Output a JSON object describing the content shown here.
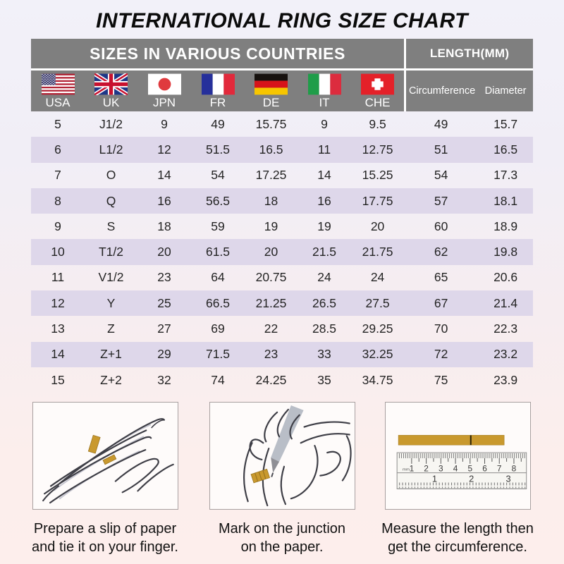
{
  "title": "INTERNATIONAL RING SIZE CHART",
  "table": {
    "header_left": "SIZES IN VARIOUS COUNTRIES",
    "header_right": "LENGTH(MM)",
    "countries": [
      {
        "code": "us",
        "label": "USA",
        "icon": "usa-flag-icon"
      },
      {
        "code": "uk",
        "label": "UK",
        "icon": "uk-flag-icon"
      },
      {
        "code": "jp",
        "label": "JPN",
        "icon": "japan-flag-icon"
      },
      {
        "code": "fr",
        "label": "FR",
        "icon": "france-flag-icon"
      },
      {
        "code": "de",
        "label": "DE",
        "icon": "germany-flag-icon"
      },
      {
        "code": "it",
        "label": "IT",
        "icon": "italy-flag-icon"
      },
      {
        "code": "che",
        "label": "CHE",
        "icon": "switzerland-flag-icon"
      }
    ],
    "length_columns": [
      "Circumference",
      "Diameter"
    ],
    "rows": [
      [
        "5",
        "J1/2",
        "9",
        "49",
        "15.75",
        "9",
        "9.5",
        "49",
        "15.7"
      ],
      [
        "6",
        "L1/2",
        "12",
        "51.5",
        "16.5",
        "11",
        "12.75",
        "51",
        "16.5"
      ],
      [
        "7",
        "O",
        "14",
        "54",
        "17.25",
        "14",
        "15.25",
        "54",
        "17.3"
      ],
      [
        "8",
        "Q",
        "16",
        "56.5",
        "18",
        "16",
        "17.75",
        "57",
        "18.1"
      ],
      [
        "9",
        "S",
        "18",
        "59",
        "19",
        "19",
        "20",
        "60",
        "18.9"
      ],
      [
        "10",
        "T1/2",
        "20",
        "61.5",
        "20",
        "21.5",
        "21.75",
        "62",
        "19.8"
      ],
      [
        "11",
        "V1/2",
        "23",
        "64",
        "20.75",
        "24",
        "24",
        "65",
        "20.6"
      ],
      [
        "12",
        "Y",
        "25",
        "66.5",
        "21.25",
        "26.5",
        "27.5",
        "67",
        "21.4"
      ],
      [
        "13",
        "Z",
        "27",
        "69",
        "22",
        "28.5",
        "29.25",
        "70",
        "22.3"
      ],
      [
        "14",
        "Z+1",
        "29",
        "71.5",
        "23",
        "33",
        "32.25",
        "72",
        "23.2"
      ],
      [
        "15",
        "Z+2",
        "32",
        "74",
        "24.25",
        "35",
        "34.75",
        "75",
        "23.9"
      ]
    ]
  },
  "instructions": [
    {
      "icon": "hand-with-paper-slip-illustration",
      "caption_line1": "Prepare a slip of paper",
      "caption_line2": "and tie it on your finger."
    },
    {
      "icon": "pencil-marking-junction-illustration",
      "caption_line1": "Mark on the junction",
      "caption_line2": "on the paper."
    },
    {
      "icon": "ruler-measuring-illustration",
      "caption_line1": "Measure the length then",
      "caption_line2": "get the circumference.",
      "ruler_unit": "mm",
      "ruler_mm_numbers": [
        "1",
        "2",
        "3",
        "4",
        "5",
        "6",
        "7",
        "8"
      ],
      "ruler_inch_numbers": [
        "1",
        "2",
        "3"
      ]
    }
  ],
  "colors": {
    "page_bg_top": "#f2f1f9",
    "page_bg_bottom": "#fdeeec",
    "header_bg": "#7f7f7f",
    "header_text": "#ffffff",
    "stripe_bg": "#ded7ea",
    "table_text": "#242424",
    "title_text": "#0b0b0b",
    "caption_text": "#111111",
    "paper_gold": "#c9992e",
    "figure_border": "#a8a0a0",
    "figure_bg": "#fefbfa"
  }
}
